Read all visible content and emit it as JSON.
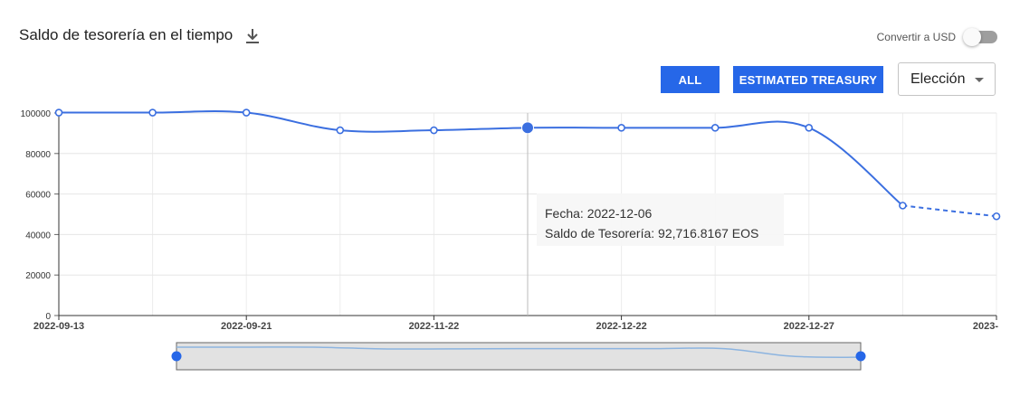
{
  "header": {
    "title": "Saldo de tesorería en el tiempo",
    "download_icon": "download-icon",
    "convert_label": "Convertir a USD",
    "convert_on": false
  },
  "controls": {
    "all_label": "ALL",
    "estimated_label": "ESTIMATED TREASURY",
    "select_value": "Elección",
    "accent": "#2667e8"
  },
  "tooltip": {
    "date_line": "Fecha: 2022-12-06",
    "value_line": "Saldo de Tesorería: 92,716.8167 EOS"
  },
  "chart_data": {
    "type": "line",
    "ylim": [
      0,
      100000
    ],
    "y_ticks": [
      "0",
      "20000",
      "40000",
      "60000",
      "80000",
      "100000"
    ],
    "x_tick_labels": [
      "2022-09-13",
      "2022-09-21",
      "2022-11-22",
      "2022-12-22",
      "2022-12-27",
      "2023-"
    ],
    "grid": true,
    "series": [
      {
        "color": "#3b6fe0",
        "values": [
          100200,
          100200,
          100200,
          91500,
          91500,
          92716.8167,
          92700,
          92700,
          92700,
          54300,
          49000
        ],
        "estimated_from_index": 9
      }
    ],
    "highlight_index": 5
  },
  "navigator": {
    "line_color": "#8cb4e0",
    "handle_color": "#2667e8"
  }
}
